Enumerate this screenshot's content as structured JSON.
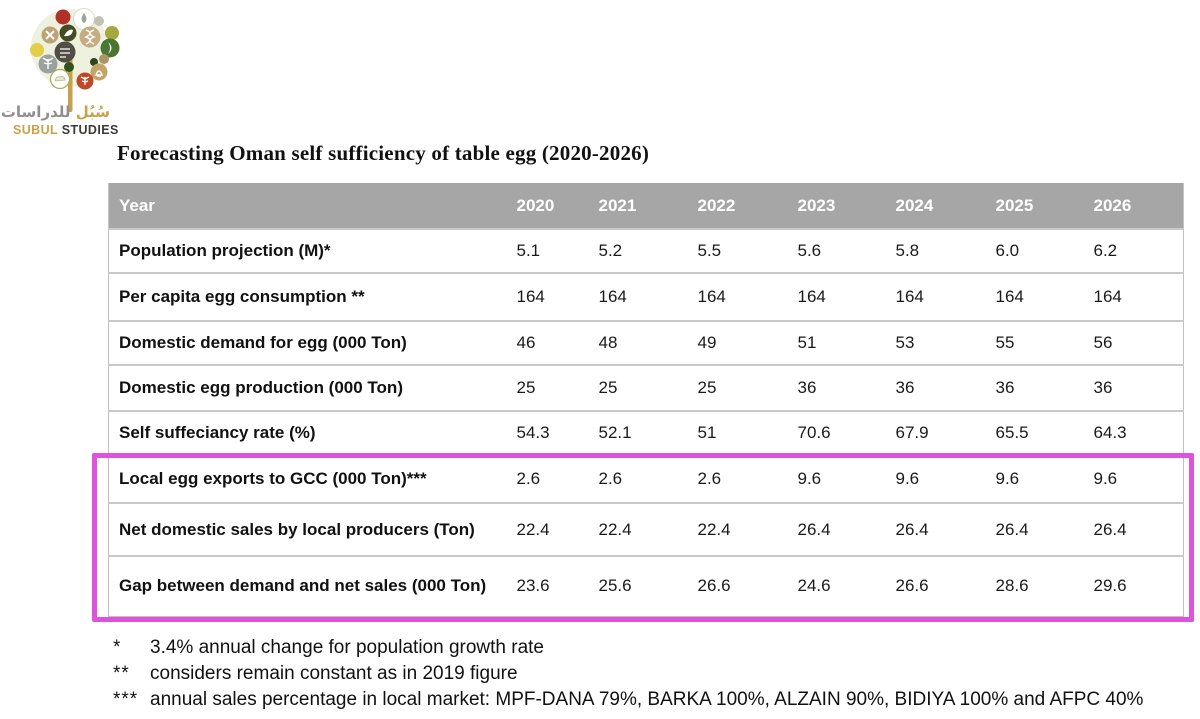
{
  "logo": {
    "arabic_first": "سُبُل",
    "arabic_second": "للدراسات",
    "name_part1": "SUBUL",
    "name_part2": "STUDIES",
    "gold_color": "#c8a24b"
  },
  "title": "Forecasting Oman self sufficiency of table egg (2020-2026)",
  "table": {
    "header_bg": "#a6a6a6",
    "highlight_color": "#df53dc",
    "header": [
      "Year",
      "2020",
      "2021",
      "2022",
      "2023",
      "2024",
      "2025",
      "2026"
    ],
    "rows": [
      {
        "label": "Population projection (M)*",
        "values": [
          "5.1",
          "5.2",
          "5.5",
          "5.6",
          "5.8",
          "6.0",
          "6.2"
        ]
      },
      {
        "label": "Per capita egg consumption **",
        "values": [
          "164",
          "164",
          "164",
          "164",
          "164",
          "164",
          "164"
        ]
      },
      {
        "label": "Domestic demand for egg (000 Ton)",
        "values": [
          "46",
          "48",
          "49",
          "51",
          "53",
          "55",
          "56"
        ]
      },
      {
        "label": "Domestic egg production (000 Ton)",
        "values": [
          "25",
          "25",
          "25",
          "36",
          "36",
          "36",
          "36"
        ]
      },
      {
        "label": "Self suffeciancy rate (%)",
        "values": [
          "54.3",
          "52.1",
          "51",
          "70.6",
          "67.9",
          "65.5",
          "64.3"
        ]
      },
      {
        "label": "Local egg exports to GCC (000 Ton)***",
        "values": [
          "2.6",
          "2.6",
          "2.6",
          "9.6",
          "9.6",
          "9.6",
          "9.6"
        ]
      },
      {
        "label": "Net domestic sales by local producers (Ton)",
        "values": [
          "22.4",
          "22.4",
          "22.4",
          "26.4",
          "26.4",
          "26.4",
          "26.4"
        ]
      },
      {
        "label": "Gap between demand and net sales (000 Ton)",
        "values": [
          "23.6",
          "25.6",
          "26.6",
          "24.6",
          "26.6",
          "28.6",
          "29.6"
        ]
      }
    ],
    "highlighted_row_indexes": [
      5,
      6,
      7
    ]
  },
  "footnotes": [
    {
      "marker": "*",
      "text": "3.4% annual change for population growth rate"
    },
    {
      "marker": "**",
      "text": "considers remain constant as in 2019 figure"
    },
    {
      "marker": "***",
      "text": "annual sales percentage in local market: MPF-DANA 79%, BARKA 100%, ALZAIN 90%, BIDIYA 100% and AFPC 40%"
    }
  ]
}
